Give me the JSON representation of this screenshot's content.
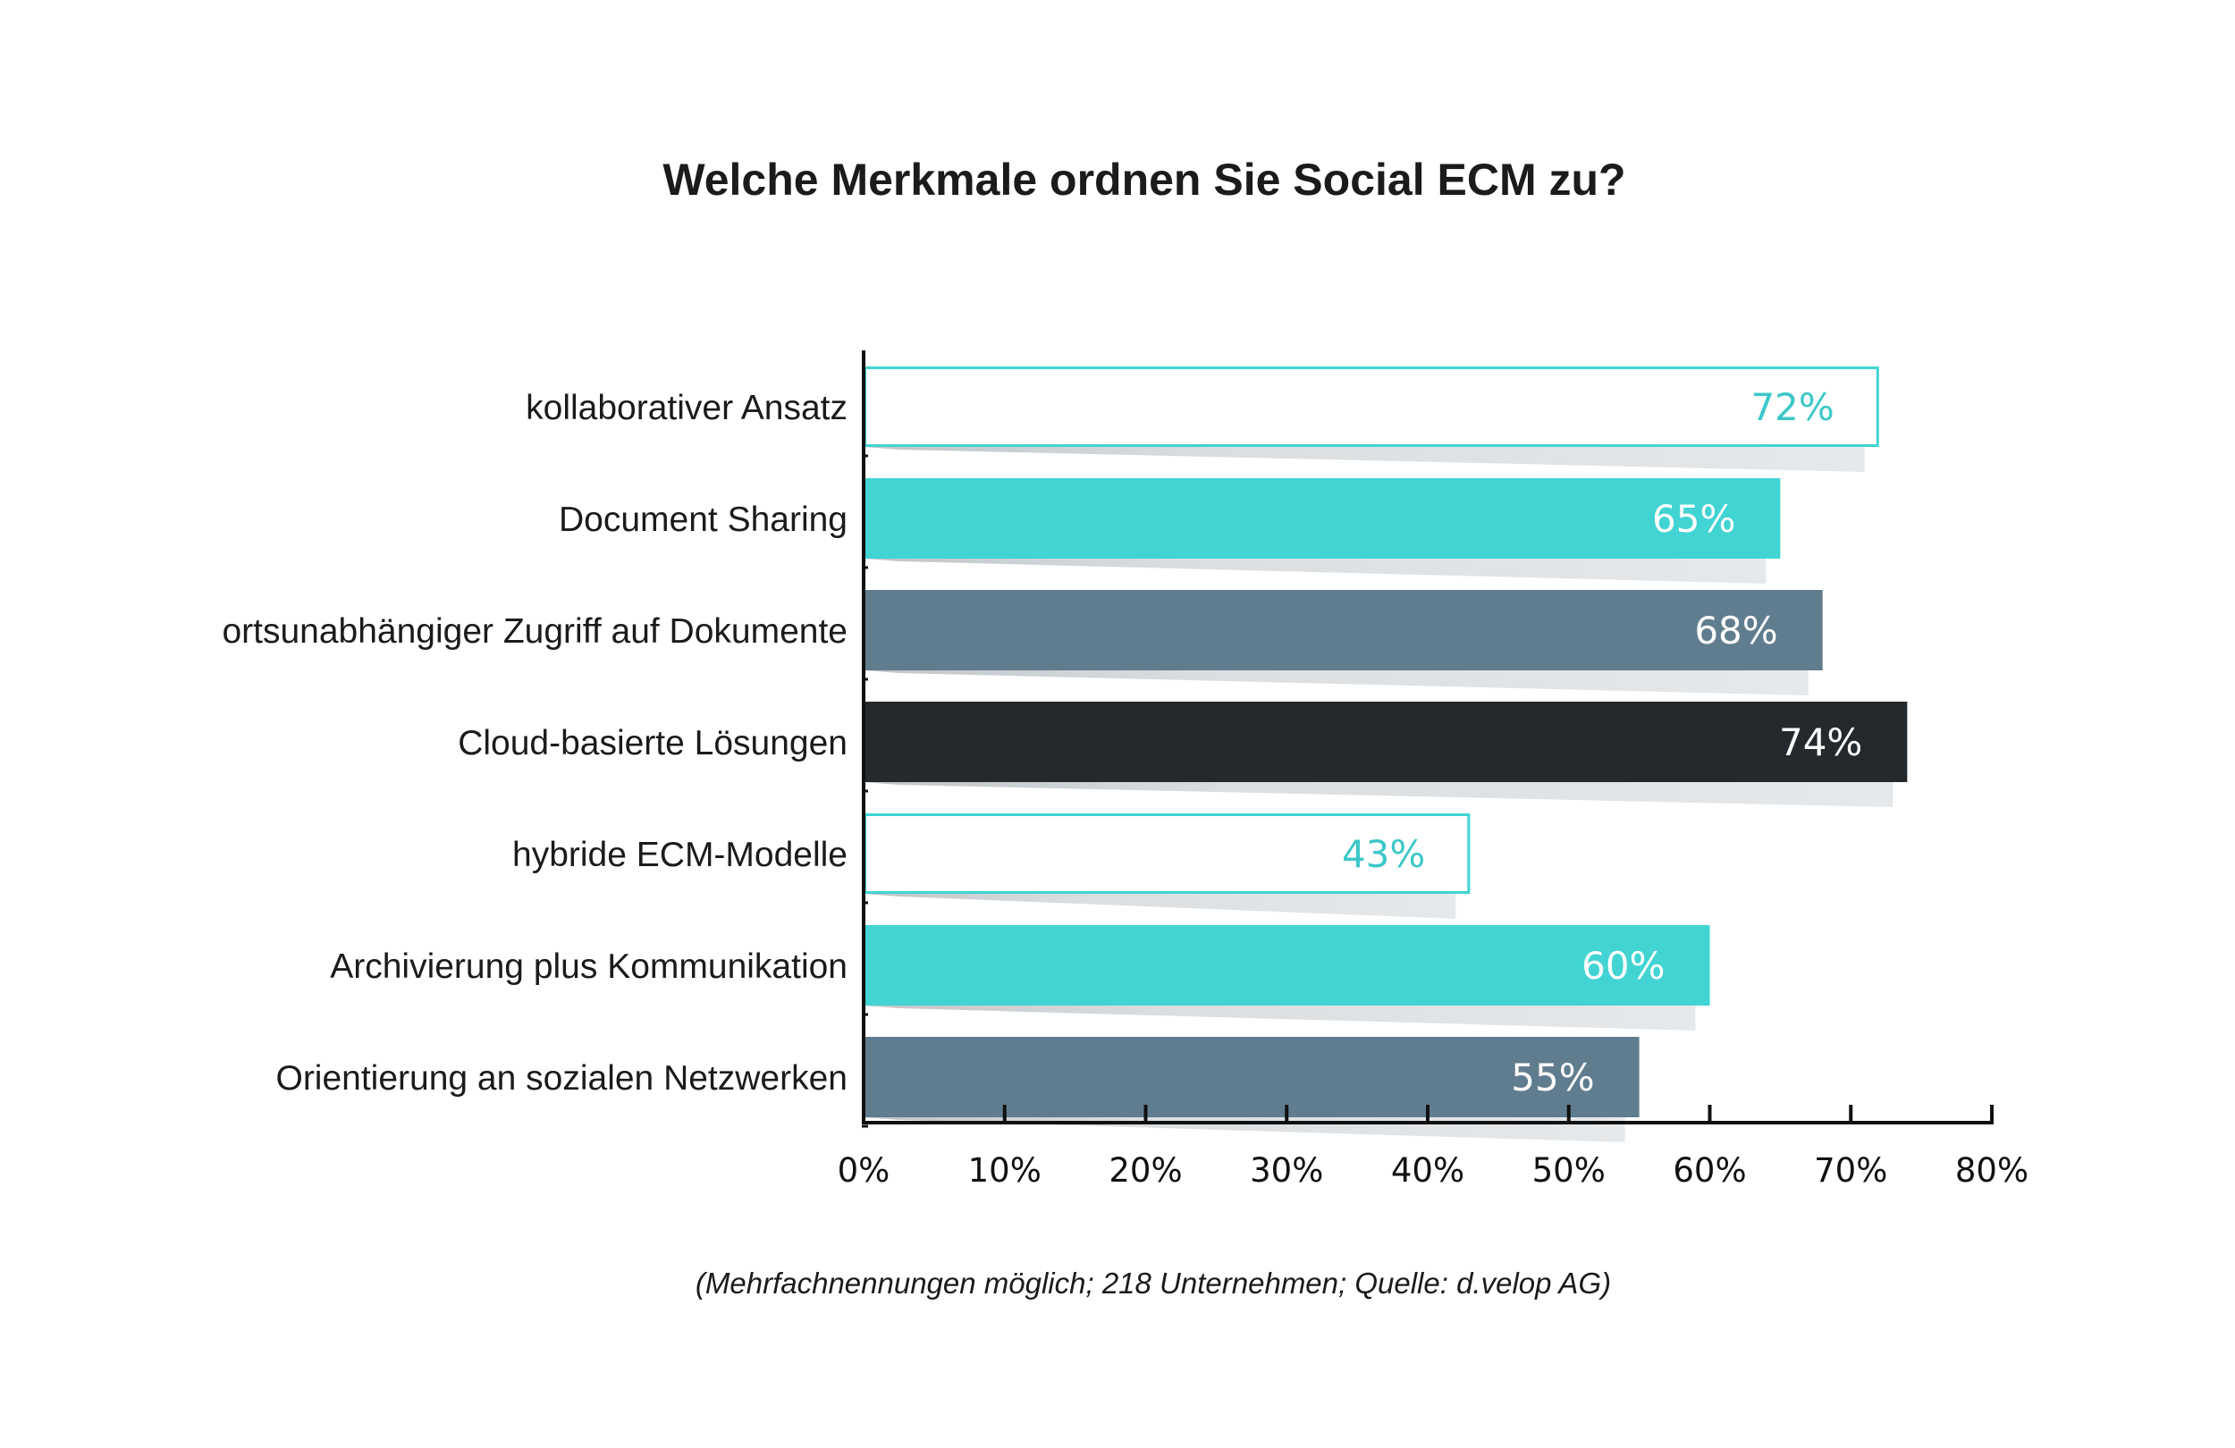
{
  "chart_data": {
    "type": "bar",
    "orientation": "horizontal",
    "title": "Welche Merkmale ordnen Sie Social ECM zu?",
    "categories": [
      "kollaborativer Ansatz",
      "Document Sharing",
      "ortsunabhängiger Zugriff auf Dokumente",
      "Cloud-basierte Lösungen",
      "hybride ECM-Modelle",
      "Archivierung plus Kommunikation",
      "Orientierung an sozialen Netzwerken"
    ],
    "values": [
      72,
      65,
      68,
      74,
      43,
      60,
      55
    ],
    "value_labels": [
      "72%",
      "65%",
      "68%",
      "74%",
      "43%",
      "60%",
      "55%"
    ],
    "bar_styles": [
      "outline-teal",
      "teal",
      "slate",
      "dark",
      "outline-teal",
      "teal",
      "slate"
    ],
    "xlim": [
      0,
      80
    ],
    "xticks": [
      0,
      10,
      20,
      30,
      40,
      50,
      60,
      70,
      80
    ],
    "xtick_labels": [
      "0%",
      "10%",
      "20%",
      "30%",
      "40%",
      "50%",
      "60%",
      "70%",
      "80%"
    ],
    "xlabel": "",
    "ylabel": "",
    "grid": false,
    "legend": "none",
    "note": "(Mehrfachnennungen möglich; 218 Unternehmen; Quelle: d.velop AG)",
    "colors": {
      "teal": "#41d4d3",
      "slate": "#607d8f",
      "dark": "#23292d",
      "outline_text": "#3cc7c8",
      "shadow": "#e3e6e8"
    }
  }
}
